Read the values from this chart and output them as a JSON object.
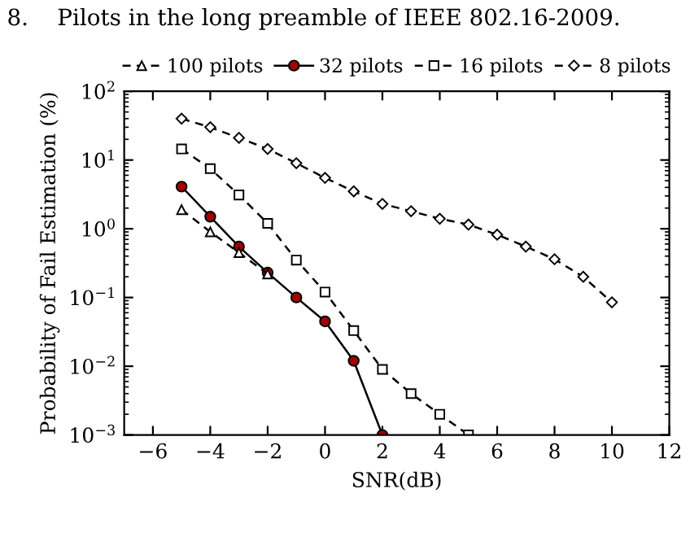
{
  "chart_data": {
    "type": "line",
    "annotations": [
      "8.    Pilots in the long preamble of IEEE 802.16-2009."
    ],
    "xlabel": "SNR(dB)",
    "ylabel": "Probability of Fail Estimation (%)",
    "log": "y",
    "xlim": [
      -7,
      12
    ],
    "xticks": [
      -6,
      -4,
      -2,
      0,
      2,
      4,
      6,
      8,
      10,
      12
    ],
    "ylim": [
      0.001,
      100
    ],
    "yticks": [
      {
        "value": 0.001,
        "label": "10$^{−3}$"
      },
      {
        "value": 0.01,
        "label": "10$^{−2}$"
      },
      {
        "value": 0.1,
        "label": "10$^{−1}$"
      },
      {
        "value": 1,
        "label": "10$^{0}$"
      },
      {
        "value": 10,
        "label": "10$^{1}$"
      },
      {
        "value": 100,
        "label": "10$^{2}$"
      }
    ],
    "grid": false,
    "legend": "top",
    "series": [
      {
        "name": "100 pilots",
        "color": "#000000",
        "marker": "triangle",
        "line_style": "dashed",
        "x": [
          -5,
          -4,
          -3,
          -2
        ],
        "values": [
          1.9,
          0.9,
          0.45,
          0.22
        ]
      },
      {
        "name": "32 pilots",
        "color": "#a00000",
        "marker": "circle",
        "line_style": "solid",
        "x": [
          -5,
          -4,
          -3,
          -2,
          -1,
          0,
          1,
          2
        ],
        "values": [
          4.1,
          1.5,
          0.55,
          0.23,
          0.1,
          0.045,
          0.012,
          0.001
        ]
      },
      {
        "name": "16 pilots",
        "color": "#000000",
        "marker": "square",
        "line_style": "dashed",
        "x": [
          -5,
          -4,
          -3,
          -2,
          -1,
          0,
          1,
          2,
          3,
          4,
          5
        ],
        "values": [
          14.5,
          7.5,
          3.1,
          1.2,
          0.35,
          0.12,
          0.033,
          0.009,
          0.004,
          0.002,
          0.001
        ]
      },
      {
        "name": "8 pilots",
        "color": "#000000",
        "marker": "diamond",
        "line_style": "dashed",
        "x": [
          -5,
          -4,
          -3,
          -2,
          -1,
          0,
          1,
          2,
          3,
          4,
          5,
          6,
          7,
          8,
          9,
          10
        ],
        "values": [
          40,
          30,
          21,
          14.5,
          9,
          5.5,
          3.5,
          2.3,
          1.8,
          1.4,
          1.15,
          0.82,
          0.55,
          0.36,
          0.2,
          0.085
        ]
      }
    ]
  }
}
